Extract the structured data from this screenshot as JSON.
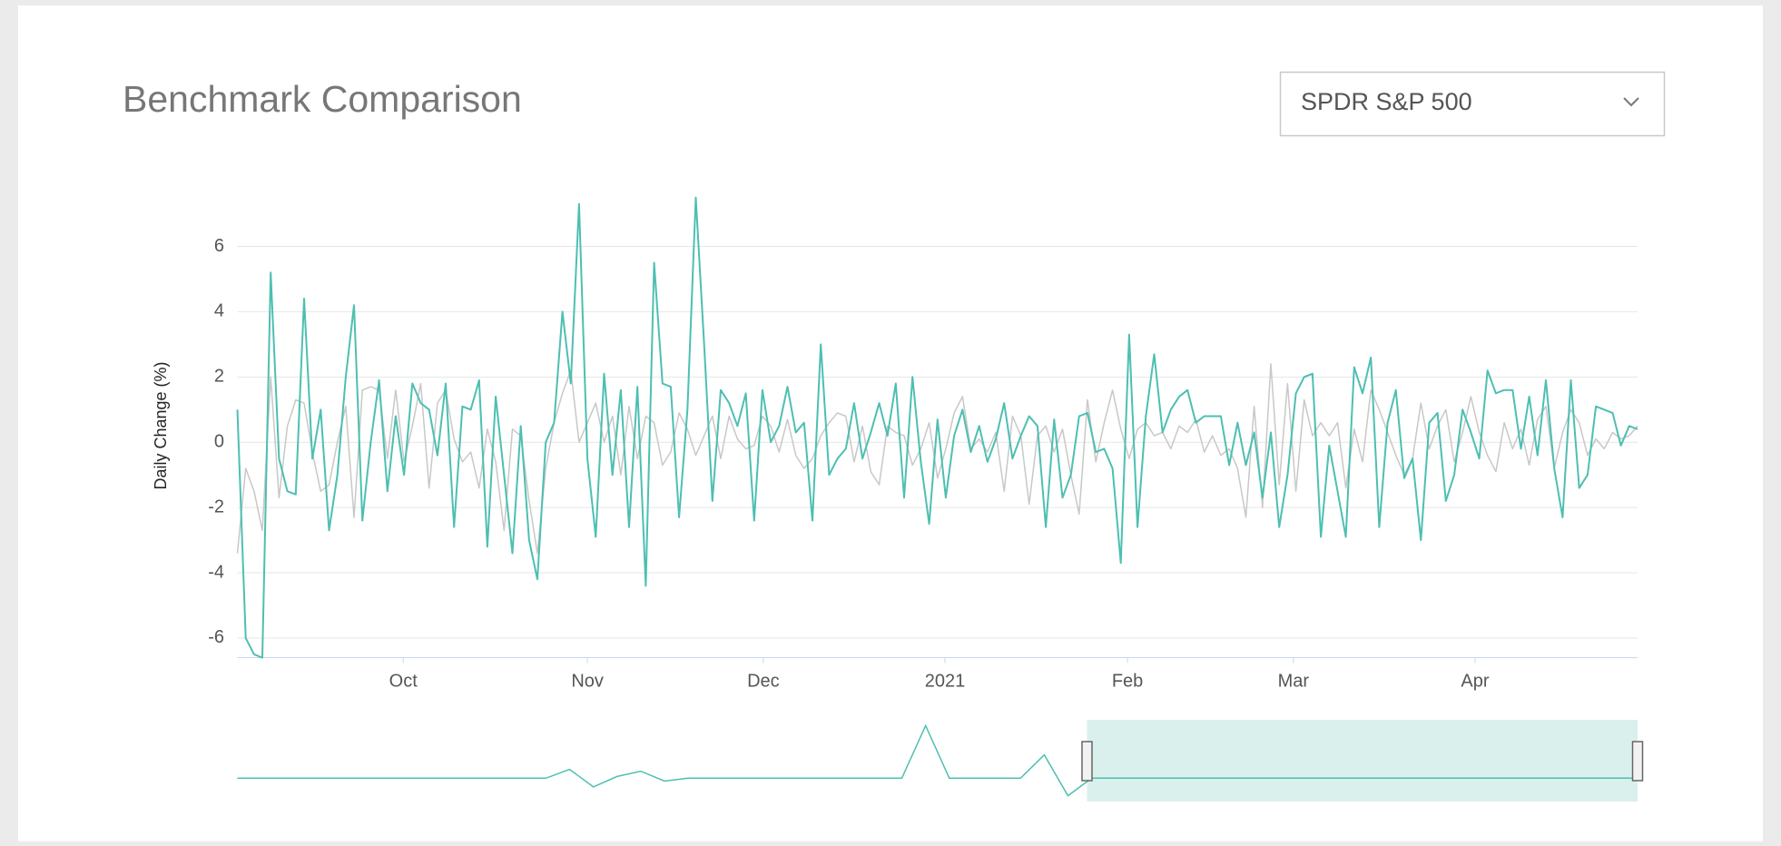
{
  "chart_data": {
    "type": "line",
    "title": "Benchmark Comparison",
    "ylabel": "Daily Change (%)",
    "xlim": [
      0,
      168
    ],
    "ylim": [
      -6.6,
      7.6
    ],
    "yticks": [
      -6,
      -4,
      -2,
      0,
      2,
      4,
      6
    ],
    "grid": true,
    "xticks": [
      {
        "value": 19.9,
        "label": "Oct"
      },
      {
        "value": 42.0,
        "label": "Nov"
      },
      {
        "value": 63.1,
        "label": "Dec"
      },
      {
        "value": 84.9,
        "label": "2021"
      },
      {
        "value": 106.8,
        "label": "Feb"
      },
      {
        "value": 126.7,
        "label": "Mar"
      },
      {
        "value": 148.5,
        "label": "Apr"
      }
    ],
    "series": [
      {
        "color": "#c8c8c8",
        "values": [
          -3.4,
          -0.8,
          -1.5,
          -2.7,
          2,
          -1.7,
          0.5,
          1.3,
          1.2,
          -0.3,
          -1.5,
          -1.3,
          0,
          1.1,
          -2.3,
          1.6,
          1.7,
          1.6,
          -0.5,
          1.6,
          -0.6,
          0.5,
          1.8,
          -1.4,
          1.2,
          1.6,
          0.1,
          -0.6,
          -0.3,
          -1.4,
          0.4,
          -0.6,
          -2.7,
          0.4,
          0.2,
          -1.8,
          -3.4,
          -0.8,
          0.6,
          1.5,
          2.2,
          0,
          0.6,
          1.2,
          0,
          0.8,
          -1,
          1.1,
          -0.5,
          0.8,
          0.6,
          -0.7,
          -0.3,
          0.9,
          0.4,
          -0.4,
          0.2,
          0.8,
          -0.5,
          0.8,
          0.1,
          -0.2,
          -0.1,
          0.8,
          0.5,
          -0.3,
          0.7,
          -0.4,
          -0.8,
          -0.5,
          0.2,
          0.6,
          0.9,
          0.8,
          -0.6,
          0.5,
          -0.9,
          -1.3,
          0.5,
          0.3,
          0.2,
          -0.7,
          -0.2,
          0.6,
          -1.1,
          -0.2,
          0.9,
          1.4,
          -0.2,
          0.1,
          -0.3,
          0.3,
          -1.5,
          0.8,
          0.2,
          -1.9,
          0.2,
          0.5,
          -0.3,
          0.4,
          -1,
          -2.2,
          1.3,
          -0.6,
          0.6,
          1.6,
          0.4,
          -0.5,
          0.4,
          0.6,
          0.2,
          0.3,
          -0.2,
          0.5,
          0.3,
          0.7,
          -0.3,
          0.2,
          -0.4,
          -0.2,
          -0.8,
          -2.3,
          1.1,
          -2,
          2.4,
          -1.3,
          1.8,
          -1.5,
          1.3,
          0.2,
          0.6,
          0.2,
          0.6,
          -1.4,
          0.4,
          -0.6,
          1.6,
          1,
          0.3,
          -0.4,
          -1,
          -0.5,
          1.2,
          -0.2,
          0.5,
          1,
          -0.6,
          0.3,
          1.4,
          0.3,
          -0.4,
          -0.9,
          0.6,
          -0.2,
          0.4,
          -0.7,
          0.7,
          1.1,
          -0.8,
          0.3,
          1,
          0.6,
          -0.4,
          0.1,
          -0.2,
          0.3,
          0.1,
          0.2,
          0.5
        ]
      },
      {
        "color": "#4dbfb1",
        "values": [
          1,
          -6,
          -6.5,
          -6.6,
          5.2,
          -0.5,
          -1.5,
          -1.6,
          4.4,
          -0.5,
          1,
          -2.7,
          -1,
          2,
          4.2,
          -2.4,
          0,
          1.9,
          -1.5,
          0.8,
          -1,
          1.8,
          1.2,
          1,
          -0.4,
          1.8,
          -2.6,
          1.1,
          1,
          1.9,
          -3.2,
          1.4,
          -1,
          -3.4,
          0.5,
          -3,
          -4.2,
          0,
          0.6,
          4,
          1.8,
          7.3,
          -0.5,
          -2.9,
          2.1,
          -1,
          1.6,
          -2.6,
          1.7,
          -4.4,
          5.5,
          1.8,
          1.7,
          -2.3,
          1,
          7.5,
          3,
          -1.8,
          1.6,
          1.2,
          0.5,
          1.5,
          -2.4,
          1.6,
          0,
          0.5,
          1.7,
          0.3,
          0.6,
          -2.4,
          3,
          -1,
          -0.5,
          -0.2,
          1.2,
          -0.5,
          0.3,
          1.2,
          0.2,
          1.8,
          -1.7,
          2,
          -0.6,
          -2.5,
          0.7,
          -1.7,
          0.2,
          1,
          -0.3,
          0.5,
          -0.6,
          0.1,
          1.2,
          -0.5,
          0.2,
          0.8,
          0.5,
          -2.6,
          0.7,
          -1.7,
          -1,
          0.8,
          0.9,
          -0.3,
          -0.2,
          -0.8,
          -3.7,
          3.3,
          -2.6,
          0.8,
          2.7,
          0.3,
          1,
          1.4,
          1.6,
          0.6,
          0.8,
          0.8,
          0.8,
          -0.7,
          0.6,
          -0.7,
          0.3,
          -1.7,
          0.3,
          -2.6,
          -1,
          1.5,
          2,
          2.1,
          -2.9,
          -0.1,
          -1.5,
          -2.9,
          2.3,
          1.5,
          2.6,
          -2.6,
          0.6,
          1.6,
          -1.1,
          -0.5,
          -3,
          0.6,
          0.9,
          -1.8,
          -1,
          1,
          0.3,
          -0.5,
          2.2,
          1.5,
          1.6,
          1.6,
          -0.2,
          1.4,
          -0.4,
          1.9,
          -0.8,
          -2.3,
          1.9,
          -1.4,
          -1,
          1.1,
          1,
          0.9,
          -0.1,
          0.5,
          0.4
        ]
      }
    ],
    "navigator": {
      "color": "#4dbfb1",
      "selection_color": "#d9f0ed",
      "xlim": [
        0,
        59
      ],
      "ylim": [
        -4,
        10
      ],
      "selection": [
        35.8,
        59
      ],
      "values": [
        0,
        0,
        0,
        0,
        0,
        0,
        0,
        0,
        0,
        0,
        0,
        0,
        0,
        0,
        1.5,
        -1.5,
        0.3,
        1.2,
        -0.5,
        0,
        0,
        0,
        0,
        0,
        0,
        0,
        0,
        0,
        0,
        9,
        0,
        0,
        0,
        0,
        4,
        -3,
        0,
        0,
        0,
        0,
        0,
        0,
        0,
        0,
        0,
        0,
        0,
        0,
        0,
        0,
        0,
        0,
        0,
        0,
        0,
        0,
        0,
        0,
        0,
        0
      ]
    }
  },
  "dropdown": {
    "selected": "SPDR S&P 500"
  }
}
